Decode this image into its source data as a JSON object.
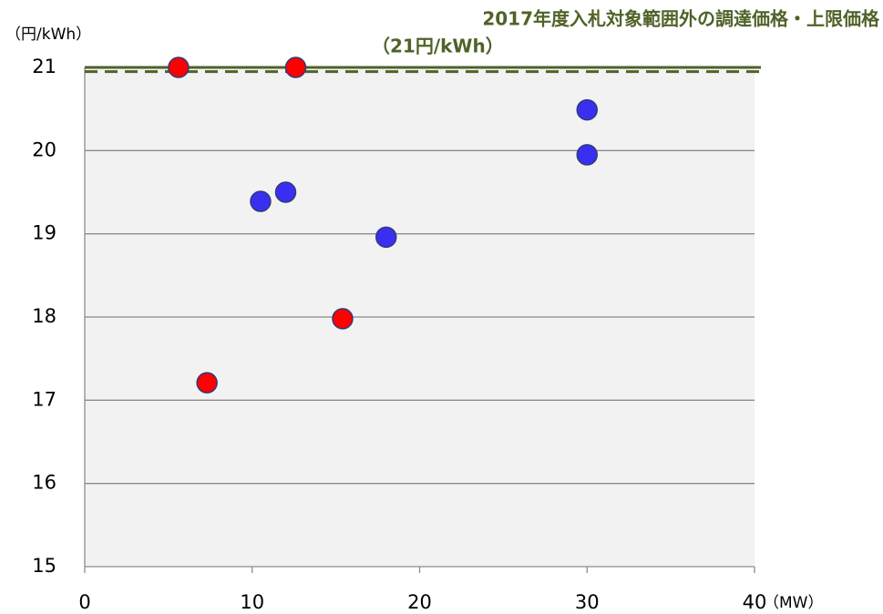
{
  "chart_data": {
    "type": "scatter",
    "annotation": [
      "2017年度入札対象範囲外の調達価格・上限価格",
      "（21円/kWh）"
    ],
    "y_label": "（円/kWh）",
    "x_label": "（MW）",
    "xlim": [
      0,
      40
    ],
    "xticks": [
      0,
      10,
      20,
      30,
      40
    ],
    "ylim": [
      15,
      21
    ],
    "yticks": [
      15,
      16,
      17,
      18,
      19,
      20,
      21
    ],
    "grid": true,
    "reference_lines": [
      {
        "value": 21,
        "style": "solid",
        "color": "#4f6228"
      },
      {
        "value": 20.95,
        "style": "dashed",
        "color": "#4f6228"
      }
    ],
    "series": [
      {
        "color": "#ff0000",
        "x": [
          5.6,
          12.6,
          7.3,
          15.4
        ],
        "values": [
          21.0,
          21.0,
          17.21,
          17.98
        ]
      },
      {
        "color": "#3a2ff0",
        "x": [
          10.5,
          12.0,
          18.0,
          30.0,
          30.0
        ],
        "values": [
          19.39,
          19.5,
          18.96,
          20.49,
          19.95
        ]
      }
    ]
  }
}
